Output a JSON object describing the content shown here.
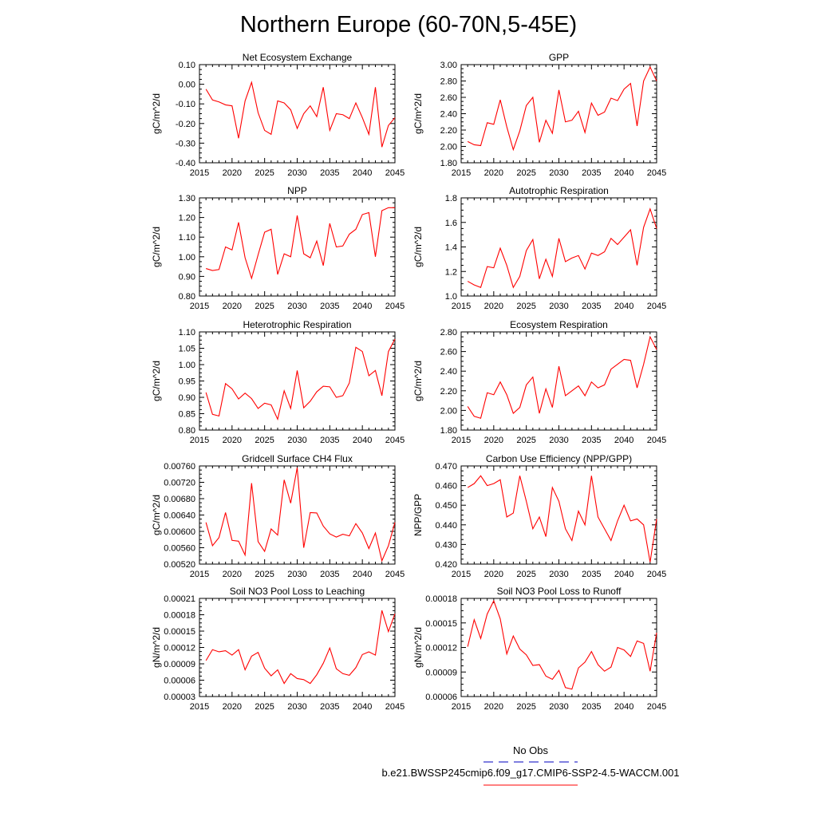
{
  "page": {
    "title": "Northern Europe (60-70N,5-45E)"
  },
  "legend": {
    "obs_label": "No Obs",
    "obs_color": "#3333cc",
    "case_label": "b.e21.BWSSP245cmip6.f09_g17.CMIP6-SSP2-4.5-WACCM.001",
    "case_color": "#ff0000"
  },
  "chart_data": [
    {
      "type": "line",
      "title": "Net Ecosystem Exchange",
      "ylabel": "gC/m^2/d",
      "xlim": [
        2015,
        2045
      ],
      "ylim": [
        -0.4,
        0.1
      ],
      "xticks": [
        "2015",
        "2020",
        "2025",
        "2030",
        "2035",
        "2040",
        "2045"
      ],
      "yticks": [
        "-0.40",
        "-0.30",
        "-0.20",
        "-0.10",
        "0.00",
        "0.10"
      ],
      "yticks_values": [
        -0.4,
        -0.3,
        -0.2,
        -0.1,
        0.0,
        0.1
      ],
      "x": [
        2016,
        2017,
        2018,
        2019,
        2020,
        2021,
        2022,
        2023,
        2024,
        2025,
        2026,
        2027,
        2028,
        2029,
        2030,
        2031,
        2032,
        2033,
        2034,
        2035,
        2036,
        2037,
        2038,
        2039,
        2040,
        2041,
        2042,
        2043,
        2044,
        2045
      ],
      "series": [
        {
          "values": [
            -0.025,
            -0.08,
            -0.09,
            -0.105,
            -0.11,
            -0.275,
            -0.085,
            0.01,
            -0.145,
            -0.235,
            -0.255,
            -0.085,
            -0.095,
            -0.13,
            -0.225,
            -0.15,
            -0.11,
            -0.165,
            -0.015,
            -0.235,
            -0.15,
            -0.155,
            -0.175,
            -0.095,
            -0.17,
            -0.255,
            -0.015,
            -0.32,
            -0.21,
            -0.17
          ]
        }
      ]
    },
    {
      "type": "line",
      "title": "GPP",
      "ylabel": "gC/m^2/d",
      "xlim": [
        2015,
        2045
      ],
      "ylim": [
        1.8,
        3.0
      ],
      "xticks": [
        "2015",
        "2020",
        "2025",
        "2030",
        "2035",
        "2040",
        "2045"
      ],
      "yticks": [
        "1.80",
        "2.00",
        "2.20",
        "2.40",
        "2.60",
        "2.80",
        "3.00"
      ],
      "yticks_values": [
        1.8,
        2.0,
        2.2,
        2.4,
        2.6,
        2.8,
        3.0
      ],
      "x": [
        2016,
        2017,
        2018,
        2019,
        2020,
        2021,
        2022,
        2023,
        2024,
        2025,
        2026,
        2027,
        2028,
        2029,
        2030,
        2031,
        2032,
        2033,
        2034,
        2035,
        2036,
        2037,
        2038,
        2039,
        2040,
        2041,
        2042,
        2043,
        2044,
        2045
      ],
      "series": [
        {
          "values": [
            2.06,
            2.02,
            2.01,
            2.29,
            2.27,
            2.57,
            2.24,
            1.96,
            2.19,
            2.5,
            2.6,
            2.05,
            2.32,
            2.16,
            2.69,
            2.3,
            2.32,
            2.43,
            2.17,
            2.53,
            2.38,
            2.42,
            2.59,
            2.56,
            2.7,
            2.77,
            2.25,
            2.8,
            2.97,
            2.8
          ]
        }
      ]
    },
    {
      "type": "line",
      "title": "NPP",
      "ylabel": "gC/m^2/d",
      "xlim": [
        2015,
        2045
      ],
      "ylim": [
        0.8,
        1.3
      ],
      "xticks": [
        "2015",
        "2020",
        "2025",
        "2030",
        "2035",
        "2040",
        "2045"
      ],
      "yticks": [
        "0.80",
        "0.90",
        "1.00",
        "1.10",
        "1.20",
        "1.30"
      ],
      "yticks_values": [
        0.8,
        0.9,
        1.0,
        1.1,
        1.2,
        1.3
      ],
      "x": [
        2016,
        2017,
        2018,
        2019,
        2020,
        2021,
        2022,
        2023,
        2024,
        2025,
        2026,
        2027,
        2028,
        2029,
        2030,
        2031,
        2032,
        2033,
        2034,
        2035,
        2036,
        2037,
        2038,
        2039,
        2040,
        2041,
        2042,
        2043,
        2044,
        2045
      ],
      "series": [
        {
          "values": [
            0.94,
            0.93,
            0.935,
            1.05,
            1.035,
            1.175,
            0.995,
            0.89,
            1.01,
            1.125,
            1.14,
            0.91,
            1.015,
            1.0,
            1.21,
            1.015,
            0.995,
            1.08,
            0.955,
            1.17,
            1.05,
            1.055,
            1.115,
            1.14,
            1.215,
            1.225,
            1.0,
            1.235,
            1.25,
            1.25
          ]
        }
      ]
    },
    {
      "type": "line",
      "title": "Autotrophic Respiration",
      "ylabel": "gC/m^2/d",
      "xlim": [
        2015,
        2045
      ],
      "ylim": [
        1.0,
        1.8
      ],
      "xticks": [
        "2015",
        "2020",
        "2025",
        "2030",
        "2035",
        "2040",
        "2045"
      ],
      "yticks": [
        "1.0",
        "1.2",
        "1.4",
        "1.6",
        "1.8"
      ],
      "yticks_values": [
        1.0,
        1.2,
        1.4,
        1.6,
        1.8
      ],
      "x": [
        2016,
        2017,
        2018,
        2019,
        2020,
        2021,
        2022,
        2023,
        2024,
        2025,
        2026,
        2027,
        2028,
        2029,
        2030,
        2031,
        2032,
        2033,
        2034,
        2035,
        2036,
        2037,
        2038,
        2039,
        2040,
        2041,
        2042,
        2043,
        2044,
        2045
      ],
      "series": [
        {
          "values": [
            1.12,
            1.09,
            1.07,
            1.24,
            1.23,
            1.39,
            1.25,
            1.07,
            1.16,
            1.37,
            1.46,
            1.14,
            1.3,
            1.16,
            1.47,
            1.28,
            1.31,
            1.33,
            1.22,
            1.35,
            1.33,
            1.36,
            1.47,
            1.42,
            1.48,
            1.54,
            1.25,
            1.56,
            1.71,
            1.55
          ]
        }
      ]
    },
    {
      "type": "line",
      "title": "Heterotrophic Respiration",
      "ylabel": "gC/m^2/d",
      "xlim": [
        2015,
        2045
      ],
      "ylim": [
        0.8,
        1.1
      ],
      "xticks": [
        "2015",
        "2020",
        "2025",
        "2030",
        "2035",
        "2040",
        "2045"
      ],
      "yticks": [
        "0.80",
        "0.85",
        "0.90",
        "0.95",
        "1.00",
        "1.05",
        "1.10"
      ],
      "yticks_values": [
        0.8,
        0.85,
        0.9,
        0.95,
        1.0,
        1.05,
        1.1
      ],
      "x": [
        2016,
        2017,
        2018,
        2019,
        2020,
        2021,
        2022,
        2023,
        2024,
        2025,
        2026,
        2027,
        2028,
        2029,
        2030,
        2031,
        2032,
        2033,
        2034,
        2035,
        2036,
        2037,
        2038,
        2039,
        2040,
        2041,
        2042,
        2043,
        2044,
        2045
      ],
      "series": [
        {
          "values": [
            0.915,
            0.848,
            0.843,
            0.942,
            0.926,
            0.895,
            0.913,
            0.896,
            0.866,
            0.882,
            0.877,
            0.833,
            0.92,
            0.866,
            0.982,
            0.868,
            0.888,
            0.917,
            0.934,
            0.932,
            0.9,
            0.905,
            0.944,
            1.053,
            1.04,
            0.966,
            0.982,
            0.905,
            1.04,
            1.078
          ]
        }
      ]
    },
    {
      "type": "line",
      "title": "Ecosystem Respiration",
      "ylabel": "gC/m^2/d",
      "xlim": [
        2015,
        2045
      ],
      "ylim": [
        1.8,
        2.8
      ],
      "xticks": [
        "2015",
        "2020",
        "2025",
        "2030",
        "2035",
        "2040",
        "2045"
      ],
      "yticks": [
        "1.80",
        "2.00",
        "2.20",
        "2.40",
        "2.60",
        "2.80"
      ],
      "yticks_values": [
        1.8,
        2.0,
        2.2,
        2.4,
        2.6,
        2.8
      ],
      "x": [
        2016,
        2017,
        2018,
        2019,
        2020,
        2021,
        2022,
        2023,
        2024,
        2025,
        2026,
        2027,
        2028,
        2029,
        2030,
        2031,
        2032,
        2033,
        2034,
        2035,
        2036,
        2037,
        2038,
        2039,
        2040,
        2041,
        2042,
        2043,
        2044,
        2045
      ],
      "series": [
        {
          "values": [
            2.04,
            1.94,
            1.92,
            2.18,
            2.16,
            2.29,
            2.16,
            1.97,
            2.03,
            2.26,
            2.34,
            1.97,
            2.22,
            2.03,
            2.45,
            2.15,
            2.2,
            2.25,
            2.15,
            2.29,
            2.23,
            2.26,
            2.42,
            2.47,
            2.52,
            2.51,
            2.23,
            2.47,
            2.75,
            2.62
          ]
        }
      ]
    },
    {
      "type": "line",
      "title": "Gridcell Surface CH4 Flux",
      "ylabel": "gC/m^2/d",
      "xlim": [
        2015,
        2045
      ],
      "ylim": [
        0.0052,
        0.0076
      ],
      "xticks": [
        "2015",
        "2020",
        "2025",
        "2030",
        "2035",
        "2040",
        "2045"
      ],
      "yticks": [
        "0.00520",
        "0.00560",
        "0.00600",
        "0.00640",
        "0.00680",
        "0.00720",
        "0.00760"
      ],
      "yticks_values": [
        0.0052,
        0.0056,
        0.006,
        0.0064,
        0.0068,
        0.0072,
        0.0076
      ],
      "x": [
        2016,
        2017,
        2018,
        2019,
        2020,
        2021,
        2022,
        2023,
        2024,
        2025,
        2026,
        2027,
        2028,
        2029,
        2030,
        2031,
        2032,
        2033,
        2034,
        2035,
        2036,
        2037,
        2038,
        2039,
        2040,
        2041,
        2042,
        2043,
        2044,
        2045
      ],
      "series": [
        {
          "values": [
            0.00622,
            0.00565,
            0.00585,
            0.00646,
            0.00578,
            0.00576,
            0.00542,
            0.00718,
            0.00575,
            0.00551,
            0.00606,
            0.00591,
            0.00726,
            0.00669,
            0.00756,
            0.0056,
            0.00646,
            0.00645,
            0.00613,
            0.00594,
            0.00586,
            0.00593,
            0.00589,
            0.00619,
            0.00596,
            0.00558,
            0.00596,
            0.00528,
            0.00565,
            0.00622
          ]
        }
      ]
    },
    {
      "type": "line",
      "title": "Carbon Use Efficiency (NPP/GPP)",
      "ylabel": "NPP/GPP",
      "xlim": [
        2015,
        2045
      ],
      "ylim": [
        0.42,
        0.47
      ],
      "xticks": [
        "2015",
        "2020",
        "2025",
        "2030",
        "2035",
        "2040",
        "2045"
      ],
      "yticks": [
        "0.420",
        "0.430",
        "0.440",
        "0.450",
        "0.460",
        "0.470"
      ],
      "yticks_values": [
        0.42,
        0.43,
        0.44,
        0.45,
        0.46,
        0.47
      ],
      "x": [
        2016,
        2017,
        2018,
        2019,
        2020,
        2021,
        2022,
        2023,
        2024,
        2025,
        2026,
        2027,
        2028,
        2029,
        2030,
        2031,
        2032,
        2033,
        2034,
        2035,
        2036,
        2037,
        2038,
        2039,
        2040,
        2041,
        2042,
        2043,
        2044,
        2045
      ],
      "series": [
        {
          "values": [
            0.459,
            0.461,
            0.465,
            0.46,
            0.461,
            0.463,
            0.444,
            0.446,
            0.465,
            0.452,
            0.438,
            0.444,
            0.434,
            0.459,
            0.452,
            0.438,
            0.432,
            0.447,
            0.44,
            0.465,
            0.444,
            0.438,
            0.432,
            0.442,
            0.45,
            0.442,
            0.443,
            0.44,
            0.421,
            0.443
          ]
        }
      ]
    },
    {
      "type": "line",
      "title": "Soil NO3 Pool Loss to Leaching",
      "ylabel": "gN/m^2/d",
      "xlim": [
        2015,
        2045
      ],
      "ylim": [
        3e-05,
        0.00021
      ],
      "xticks": [
        "2015",
        "2020",
        "2025",
        "2030",
        "2035",
        "2040",
        "2045"
      ],
      "yticks": [
        "0.00003",
        "0.00006",
        "0.00009",
        "0.00012",
        "0.00015",
        "0.00018",
        "0.00021"
      ],
      "yticks_values": [
        3e-05,
        6e-05,
        9e-05,
        0.00012,
        0.00015,
        0.00018,
        0.00021
      ],
      "x": [
        2016,
        2017,
        2018,
        2019,
        2020,
        2021,
        2022,
        2023,
        2024,
        2025,
        2026,
        2027,
        2028,
        2029,
        2030,
        2031,
        2032,
        2033,
        2034,
        2035,
        2036,
        2037,
        2038,
        2039,
        2040,
        2041,
        2042,
        2043,
        2044,
        2045
      ],
      "series": [
        {
          "values": [
            9.6e-05,
            0.000116,
            0.000112,
            0.000114,
            0.000106,
            0.000116,
            7.9e-05,
            0.000104,
            0.000111,
            8.2e-05,
            6.8e-05,
            7.9e-05,
            5.4e-05,
            7.2e-05,
            6.3e-05,
            6.1e-05,
            5.4e-05,
            7e-05,
            9.1e-05,
            0.000119,
            8.1e-05,
            7.2e-05,
            6.9e-05,
            8.3e-05,
            0.000107,
            0.000112,
            0.000106,
            0.000188,
            0.000149,
            0.000182
          ]
        }
      ]
    },
    {
      "type": "line",
      "title": "Soil NO3 Pool Loss to Runoff",
      "ylabel": "gN/m^2/d",
      "xlim": [
        2015,
        2045
      ],
      "ylim": [
        6e-05,
        0.00018
      ],
      "xticks": [
        "2015",
        "2020",
        "2025",
        "2030",
        "2035",
        "2040",
        "2045"
      ],
      "yticks": [
        "0.00006",
        "0.00009",
        "0.00012",
        "0.00015",
        "0.00018"
      ],
      "yticks_values": [
        6e-05,
        9e-05,
        0.00012,
        0.00015,
        0.00018
      ],
      "x": [
        2016,
        2017,
        2018,
        2019,
        2020,
        2021,
        2022,
        2023,
        2024,
        2025,
        2026,
        2027,
        2028,
        2029,
        2030,
        2031,
        2032,
        2033,
        2034,
        2035,
        2036,
        2037,
        2038,
        2039,
        2040,
        2041,
        2042,
        2043,
        2044,
        2045
      ],
      "series": [
        {
          "values": [
            0.000121,
            0.000154,
            0.000131,
            0.000161,
            0.000177,
            0.000155,
            0.000112,
            0.000134,
            0.000118,
            0.000111,
            9.8e-05,
            9.9e-05,
            8.5e-05,
            8.1e-05,
            9.2e-05,
            7.1e-05,
            6.9e-05,
            9.5e-05,
            0.000102,
            0.000115,
            9.9e-05,
            9.1e-05,
            9.6e-05,
            0.00012,
            0.000117,
            0.000109,
            0.000128,
            0.000125,
            9.1e-05,
            0.000138
          ]
        }
      ]
    }
  ]
}
